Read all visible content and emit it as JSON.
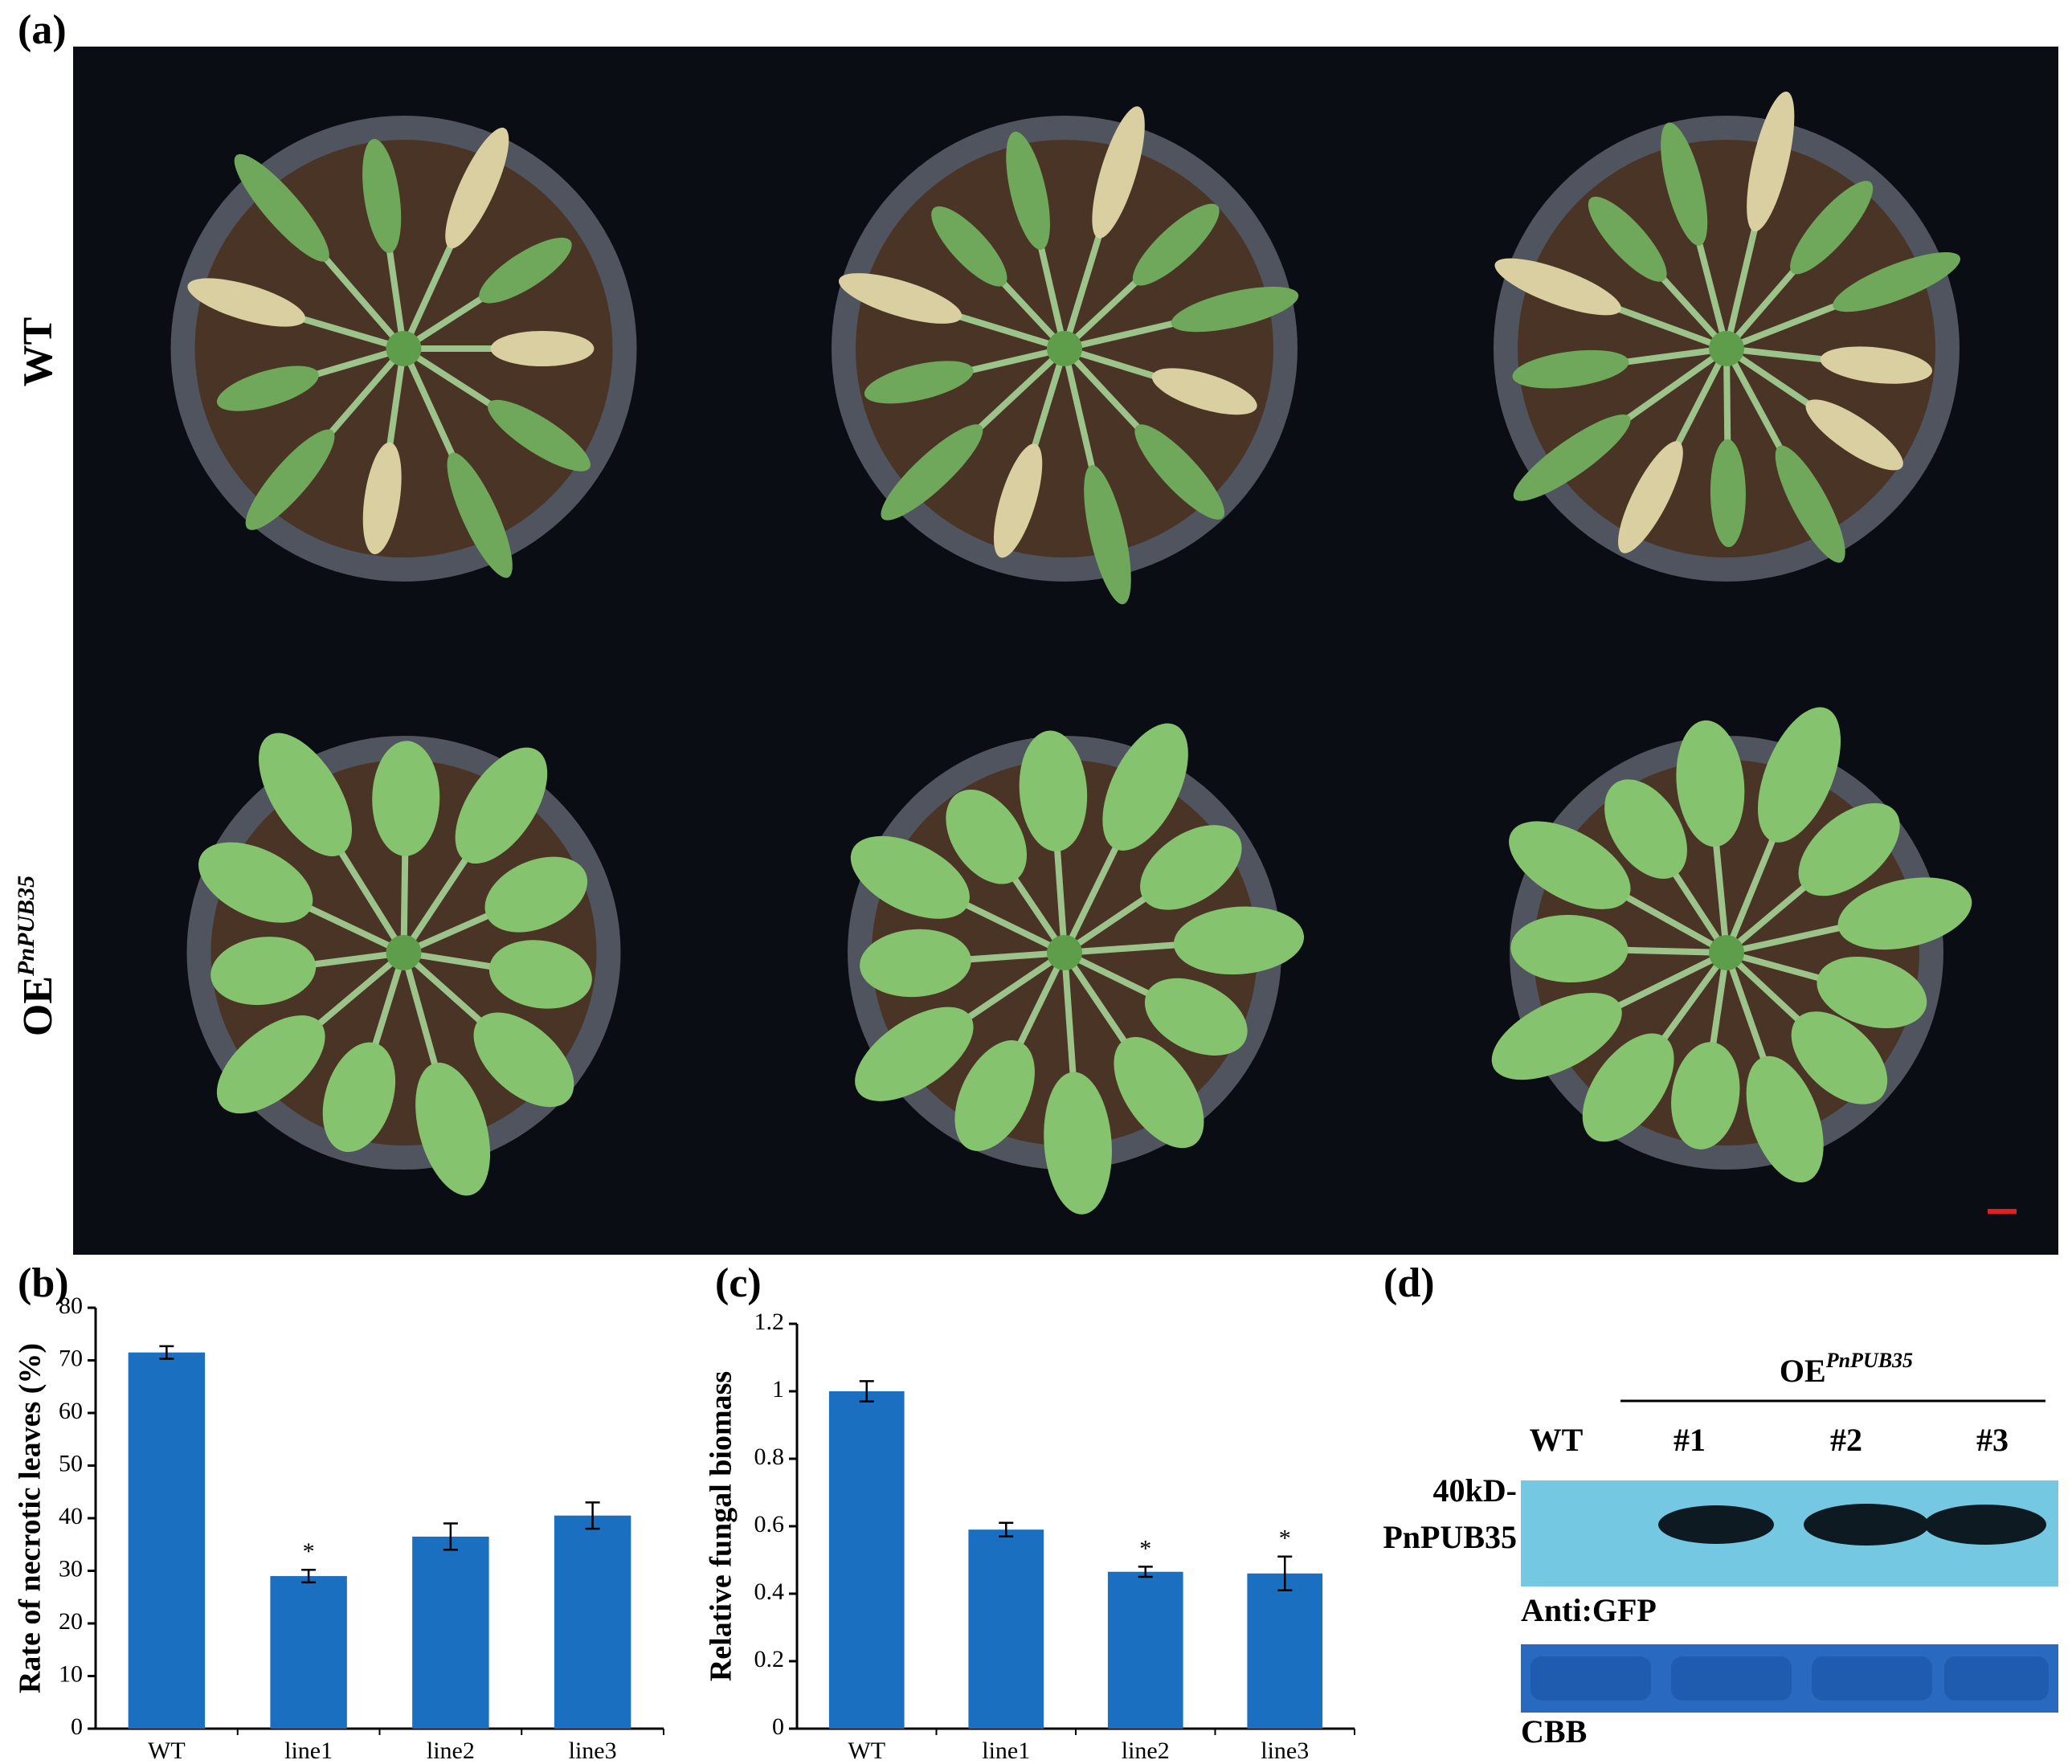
{
  "panel_labels": [
    "(a)",
    "(b)",
    "(c)",
    "(d)"
  ],
  "photo_rows": {
    "wt": "WT",
    "oe": "OE",
    "oe_superscript": "PnPUB35"
  },
  "chart_data": [
    {
      "type": "bar",
      "y_label": "Rate of necrotic leaves (%)",
      "categories": [
        "WT",
        "line1",
        "line2",
        "line3"
      ],
      "values": [
        71.5,
        29,
        36.5,
        40.5
      ],
      "errors": [
        1.2,
        1.2,
        2.5,
        2.5
      ],
      "significance": [
        null,
        "*",
        null,
        null
      ],
      "color": "#1a6fc0",
      "ylim": [
        0,
        80
      ],
      "yticks": [
        0,
        10,
        20,
        30,
        40,
        50,
        60,
        70,
        80
      ],
      "grid": false
    },
    {
      "type": "bar",
      "y_label": "Relative fungal biomass",
      "categories": [
        "WT",
        "line1",
        "line2",
        "line3"
      ],
      "values": [
        1.0,
        0.59,
        0.465,
        0.46
      ],
      "errors": [
        0.03,
        0.02,
        0.015,
        0.05
      ],
      "significance": [
        null,
        null,
        "*",
        "*"
      ],
      "color": "#1a6fc0",
      "ylim": [
        0,
        1.2
      ],
      "yticks": [
        0,
        0.2,
        0.4,
        0.6,
        0.8,
        1,
        1.2
      ],
      "grid": false
    }
  ],
  "blot": {
    "group_label": "OE",
    "group_superscript": "PnPUB35",
    "lanes": [
      "WT",
      "#1",
      "#2",
      "#3"
    ],
    "marker": "40kD-",
    "protein": "PnPUB35",
    "antibody": "Anti:GFP",
    "loading": "CBB"
  }
}
